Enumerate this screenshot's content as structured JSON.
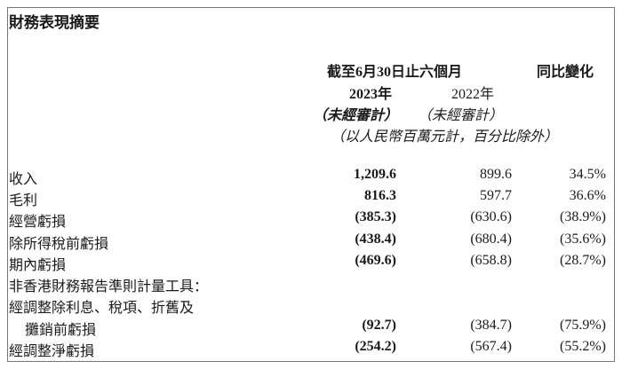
{
  "title": "財務表現摘要",
  "header": {
    "period": "截至6月30日止六個月",
    "change": "同比變化",
    "year_current": "2023年",
    "year_prior": "2022年",
    "audit_current": "（未經審計）",
    "audit_prior": "（未經審計）",
    "unit_note": "（以人民幣百萬元計，百分比除外）"
  },
  "rows": [
    {
      "label": "收入",
      "current": "1,209.6",
      "prior": "899.6",
      "change": "34.5%"
    },
    {
      "label": "毛利",
      "current": "816.3",
      "prior": "597.7",
      "change": "36.6%"
    },
    {
      "label": "經營虧損",
      "current": "(385.3)",
      "prior": "(630.6)",
      "change": "(38.9%)"
    },
    {
      "label": "除所得稅前虧損",
      "current": "(438.4)",
      "prior": "(680.4)",
      "change": "(35.6%)"
    },
    {
      "label": "期內虧損",
      "current": "(469.6)",
      "prior": "(658.8)",
      "change": "(28.7%)"
    },
    {
      "label": "非香港財務報告準則計量工具：",
      "current": "",
      "prior": "",
      "change": ""
    },
    {
      "label": "經調整除利息、稅項、折舊及",
      "current": "",
      "prior": "",
      "change": ""
    },
    {
      "label": "攤銷前虧損",
      "current": "(92.7)",
      "prior": "(384.7)",
      "change": "(75.9%)"
    },
    {
      "label": "經調整淨虧損",
      "current": "(254.2)",
      "prior": "(567.4)",
      "change": "(55.2%)"
    }
  ]
}
